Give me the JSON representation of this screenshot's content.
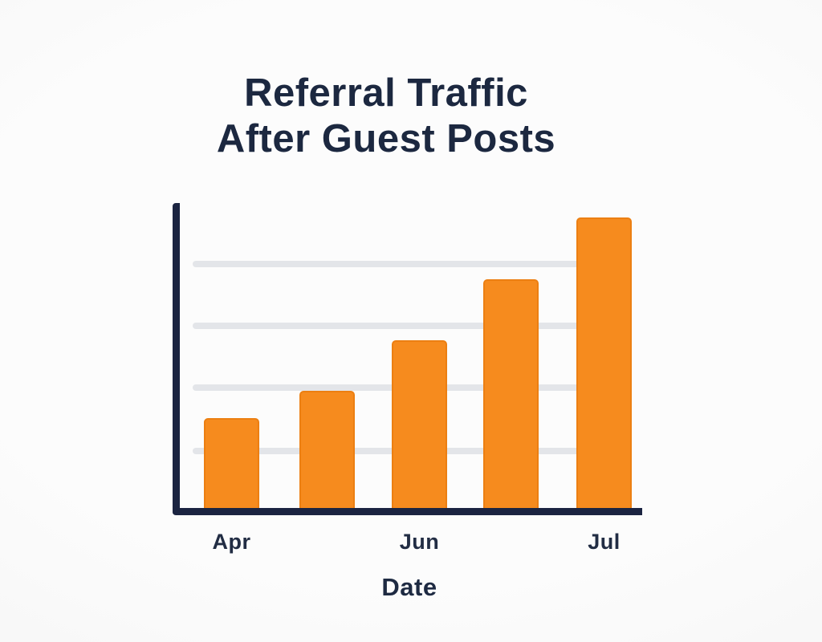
{
  "page": {
    "background_color": "#f6f6f6"
  },
  "chart": {
    "title_line1": "Referral Traffic",
    "title_line2": "After Guest Posts",
    "xlabel": "Date"
  },
  "chart_data": {
    "type": "bar",
    "title": "Referral Traffic After Guest Posts",
    "xlabel": "Date",
    "ylabel": "",
    "categories": [
      "Apr",
      "",
      "Jun",
      "",
      "Jul"
    ],
    "values": [
      1.45,
      1.9,
      2.72,
      3.7,
      4.7
    ],
    "units": "gridline intervals (y axis unlabeled; 4 gridlines at 1,2,3,4)",
    "ylim": [
      0,
      5
    ],
    "grid": true,
    "legend": false,
    "bar_color": "#f68b1e",
    "axis_color": "#1b2441",
    "gridline_color": "#e3e5e9",
    "title_color": "#1c2840"
  }
}
